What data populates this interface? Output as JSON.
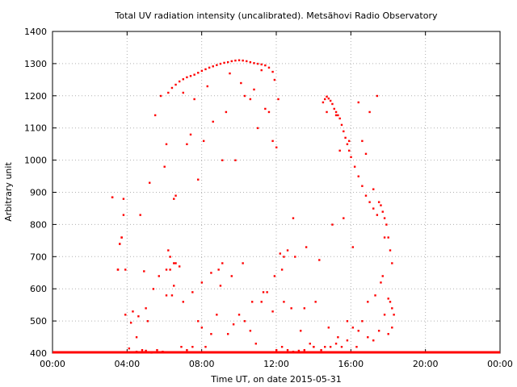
{
  "chart_data": {
    "type": "scatter",
    "title": "Total UV radiation intensity (uncalibrated). Metsähovi Radio Observatory",
    "xlabel": "Time UT, on date 2015-05-31",
    "ylabel": "Arbitrary unit",
    "xlim": [
      0,
      24
    ],
    "ylim": [
      400,
      1400
    ],
    "x_ticks": [
      0,
      4,
      8,
      12,
      16,
      20,
      24
    ],
    "x_tick_labels": [
      "00:00",
      "04:00",
      "08:00",
      "12:00",
      "16:00",
      "20:00",
      "00:00"
    ],
    "y_ticks": [
      400,
      500,
      600,
      700,
      800,
      900,
      1000,
      1100,
      1200,
      1300,
      1400
    ],
    "y_tick_labels": [
      "400",
      "500",
      "600",
      "700",
      "800",
      "900",
      "1000",
      "1100",
      "1200",
      "1300",
      "1400"
    ],
    "grid": true,
    "series": [
      {
        "color": "#ff0000",
        "marker": "dot",
        "x": [
          3.2,
          3.5,
          3.6,
          3.7,
          3.8,
          4.1,
          4.5,
          4.8,
          5.0,
          5.3,
          5.6,
          5.9,
          6.1,
          6.3,
          6.5,
          6.6,
          6.9,
          7.2,
          7.5,
          7.8,
          8.0,
          8.2,
          8.5,
          8.8,
          9.1,
          9.4,
          9.7,
          10.0,
          10.3,
          10.6,
          10.9,
          11.2,
          11.5,
          11.8,
          12.0,
          12.3,
          12.6,
          12.9,
          13.2,
          13.5,
          13.8,
          14.0,
          14.4,
          14.6,
          14.9,
          15.2,
          15.5,
          15.8,
          16.1,
          16.3,
          16.6,
          16.9,
          17.2,
          17.5,
          17.8,
          18.0,
          18.2,
          6.2,
          6.4,
          6.6,
          6.8,
          7.0,
          7.2,
          7.4,
          7.6,
          7.8,
          8.0,
          8.2,
          8.4,
          8.6,
          8.8,
          9.0,
          9.2,
          9.4,
          9.6,
          9.8,
          10.0,
          10.2,
          10.4,
          10.6,
          10.8,
          11.0,
          11.2,
          11.4,
          11.6,
          11.8,
          11.9,
          14.5,
          14.6,
          14.7,
          14.8,
          14.9,
          15.0,
          15.1,
          15.2,
          15.3,
          15.4,
          15.5,
          15.6,
          15.7,
          15.8,
          15.9,
          16.0,
          16.2,
          16.4,
          16.6,
          16.8,
          17.0,
          17.2,
          17.4,
          17.5,
          17.6,
          17.7,
          17.8,
          17.9,
          18.0,
          18.1,
          18.2,
          3.2,
          3.5,
          3.6,
          3.7,
          3.8,
          3.9,
          4.3,
          4.5,
          4.7,
          4.9,
          5.1,
          5.2,
          5.5,
          5.8,
          6.0,
          6.1,
          6.2,
          6.3,
          6.4,
          6.5,
          6.6,
          6.8,
          7.0,
          7.2,
          7.4,
          7.6,
          7.8,
          8.1,
          8.3,
          8.6,
          8.9,
          9.1,
          9.3,
          9.5,
          9.8,
          10.1,
          10.3,
          10.6,
          10.8,
          11.0,
          11.2,
          11.4,
          11.6,
          11.8,
          12.0,
          12.1,
          12.2,
          12.3,
          12.4,
          12.6,
          12.8,
          13.0,
          13.3,
          13.6,
          14.0,
          14.3,
          14.7,
          15.0,
          15.2,
          15.4,
          15.6,
          15.9,
          16.1,
          16.4,
          16.6,
          16.8,
          17.0,
          17.2,
          17.4,
          17.6,
          17.8,
          18.0,
          18.2,
          18.3,
          3.9,
          4.2,
          4.6,
          5.0,
          5.4,
          5.7,
          6.1,
          6.5,
          7.0,
          7.5,
          8.0,
          8.5,
          9.0,
          9.6,
          10.2,
          10.7,
          11.3,
          11.9,
          12.4,
          12.9,
          13.5,
          14.1,
          14.8,
          15.3,
          15.8,
          16.4,
          16.9,
          17.3,
          17.7,
          18.1
        ],
        "y": [
          885,
          660,
          740,
          760,
          880,
          415,
          405,
          410,
          408,
          402,
          410,
          405,
          660,
          700,
          880,
          680,
          420,
          410,
          420,
          500,
          480,
          420,
          460,
          520,
          680,
          460,
          490,
          520,
          500,
          470,
          430,
          560,
          590,
          530,
          410,
          420,
          410,
          405,
          408,
          410,
          430,
          420,
          410,
          420,
          420,
          430,
          420,
          440,
          480,
          420,
          500,
          450,
          440,
          470,
          520,
          460,
          480,
          1210,
          1225,
          1235,
          1245,
          1252,
          1258,
          1262,
          1266,
          1272,
          1278,
          1283,
          1288,
          1292,
          1296,
          1300,
          1303,
          1305,
          1308,
          1310,
          1311,
          1310,
          1308,
          1305,
          1302,
          1300,
          1298,
          1295,
          1288,
          1275,
          1250,
          1180,
          1190,
          1198,
          1192,
          1185,
          1175,
          1160,
          1150,
          1140,
          1130,
          1110,
          1090,
          1070,
          1050,
          1030,
          1010,
          980,
          950,
          920,
          890,
          870,
          850,
          830,
          870,
          860,
          840,
          820,
          800,
          760,
          720,
          680,
          885,
          660,
          740,
          760,
          830,
          660,
          530,
          450,
          830,
          655,
          500,
          930,
          1140,
          1200,
          980,
          1050,
          720,
          660,
          580,
          680,
          890,
          670,
          1210,
          1050,
          1080,
          1190,
          940,
          1060,
          1230,
          1120,
          660,
          1000,
          1150,
          1270,
          1000,
          1240,
          1200,
          1190,
          1220,
          1100,
          1280,
          1160,
          1150,
          1060,
          1040,
          1190,
          710,
          660,
          560,
          720,
          540,
          700,
          470,
          730,
          420,
          690,
          1150,
          800,
          1140,
          1030,
          820,
          1060,
          730,
          1180,
          1060,
          1020,
          1150,
          910,
          1200,
          620,
          760,
          570,
          540,
          520,
          520,
          495,
          515,
          540,
          600,
          640,
          580,
          610,
          560,
          590,
          620,
          650,
          610,
          640,
          680,
          560,
          590,
          640,
          700,
          820,
          540,
          560,
          480,
          450,
          500,
          470,
          560,
          580,
          640,
          560
        ]
      }
    ],
    "baseline": {
      "y": 400,
      "x_from": 0,
      "x_to": 24
    }
  }
}
